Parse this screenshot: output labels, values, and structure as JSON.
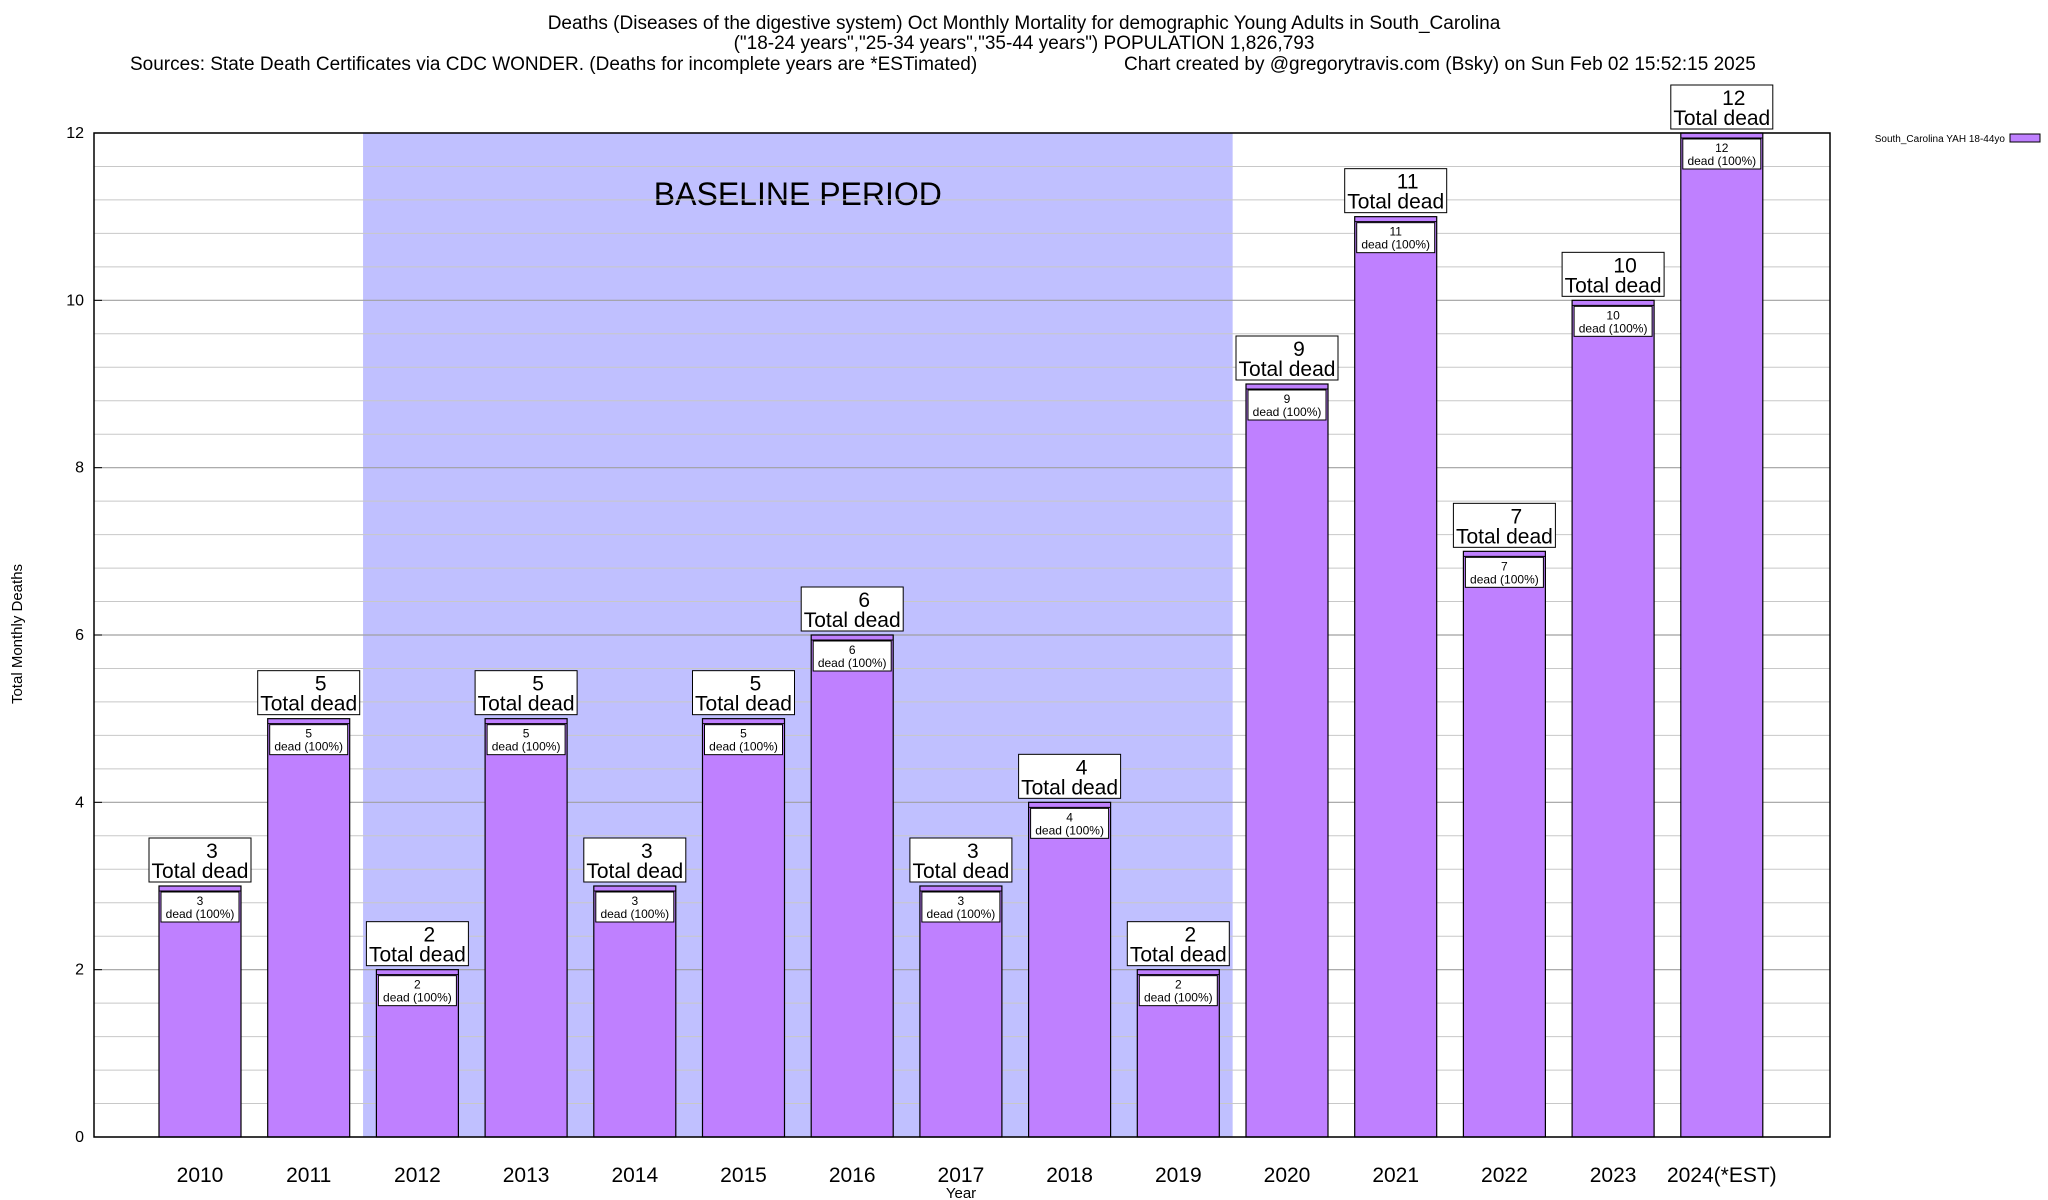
{
  "chart_data": {
    "type": "bar",
    "title_lines": [
      "Deaths (Diseases of the digestive system) Oct Monthly Mortality for demographic Young Adults in South_Carolina",
      "(\"18-24 years\",\"25-34 years\",\"35-44 years\") POPULATION 1,826,793"
    ],
    "source": "Sources: State Death Certificates via CDC WONDER. (Deaths for incomplete years are *ESTimated)",
    "credit": "Chart created by @gregorytravis.com (Bsky) on Sun Feb 02 15:52:15 2025",
    "xlabel": "Year",
    "ylabel": "Total Monthly Deaths",
    "ylim": [
      0,
      12
    ],
    "yticks": [
      "0",
      "2",
      "4",
      "6",
      "8",
      "10",
      "12"
    ],
    "grid": true,
    "legend_position": "top-right",
    "series": [
      {
        "name": "South_Carolina YAH 18-44yo",
        "color": "#bf80ff",
        "values": [
          3,
          5,
          2,
          5,
          3,
          5,
          6,
          3,
          4,
          2,
          9,
          11,
          7,
          10,
          12
        ]
      }
    ],
    "categories": [
      "2010",
      "2011",
      "2012",
      "2013",
      "2014",
      "2015",
      "2016",
      "2017",
      "2018",
      "2019",
      "2020",
      "2021",
      "2022",
      "2023",
      "2024(*EST)"
    ],
    "total_label": "Total dead",
    "inner_label": "dead (100%)",
    "baseline": {
      "label": "BASELINE PERIOD",
      "from": "2012",
      "to": "2019",
      "color": "#c0c0ff"
    }
  }
}
